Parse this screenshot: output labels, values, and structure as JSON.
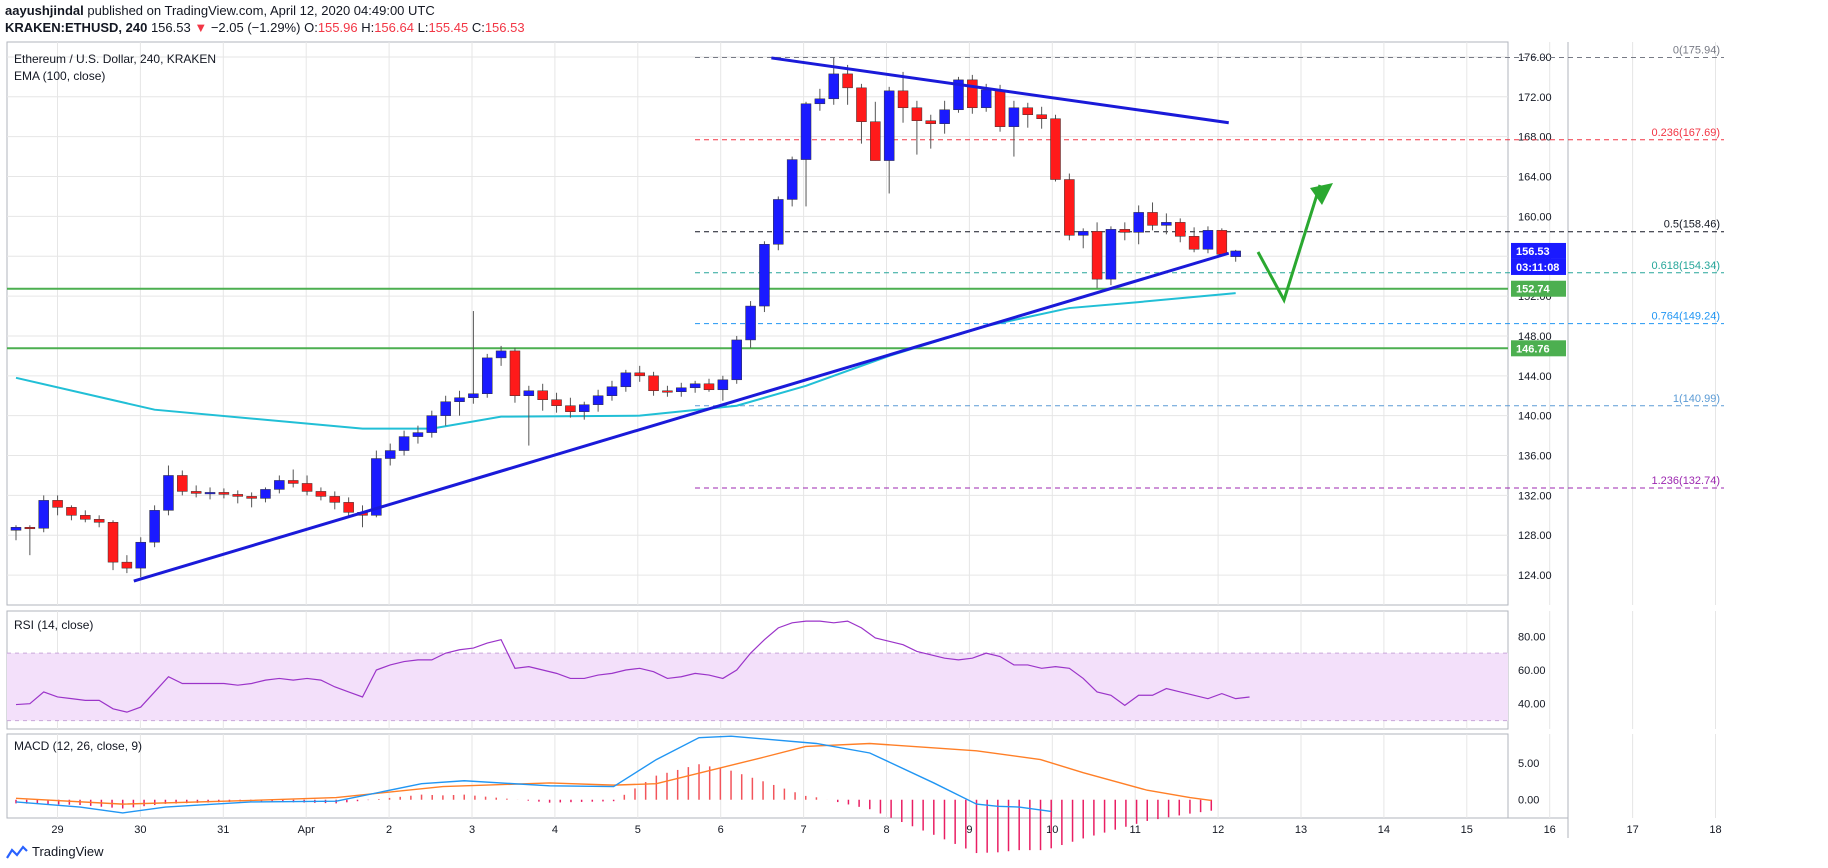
{
  "header": {
    "author": "aayushjindal",
    "published_text": "published on TradingView.com, April 12, 2020 04:49:00 UTC",
    "symbol": "KRAKEN:ETHUSD, 240",
    "last": "156.53",
    "change_arrow": "▼",
    "change": "−2.05 (−1.29%)",
    "open_label": "O:",
    "open": "155.96",
    "high_label": "H:",
    "high": "156.64",
    "low_label": "L:",
    "low": "155.45",
    "close_label": "C:",
    "close": "156.53"
  },
  "legend": {
    "title": "Ethereum / U.S. Dollar, 240, KRAKEN",
    "ema": "EMA (100, close)",
    "rsi": "RSI (14, close)",
    "macd": "MACD (12, 26, close, 9)"
  },
  "footer": {
    "brand": "TradingView"
  },
  "colors": {
    "up": "#1a1aff",
    "down": "#ff1a1a",
    "ema": "#21bfd6",
    "trend": "#1a1ad9",
    "support": "#4caf50",
    "arrow": "#2aa830",
    "rsi": "#9b34c9",
    "rsi_band": "#f3e0fa",
    "macd": "#2196f3",
    "signal": "#ff7f27",
    "hist_pos": "#f2545b",
    "hist_neg": "#e91e63"
  },
  "chart_data": {
    "type": "candlestick",
    "y_axis": {
      "range": [
        121,
        177.5
      ],
      "ticks": [
        "176.00",
        "172.00",
        "168.00",
        "164.00",
        "160.00",
        "156.00",
        "152.00",
        "148.00",
        "144.00",
        "140.00",
        "136.00",
        "132.00",
        "128.00",
        "124.00"
      ]
    },
    "x_axis": {
      "labels": [
        "29",
        "30",
        "31",
        "Apr",
        "2",
        "3",
        "4",
        "5",
        "6",
        "7",
        "8",
        "9",
        "10",
        "11",
        "12",
        "13",
        "14",
        "15",
        "16",
        "17",
        "18"
      ]
    },
    "candles": [
      [
        128.5,
        129.0,
        127.5,
        128.8
      ],
      [
        128.8,
        129.0,
        126.0,
        128.7
      ],
      [
        128.7,
        132.0,
        128.3,
        131.5
      ],
      [
        131.5,
        132.0,
        130.0,
        130.8
      ],
      [
        130.8,
        131.0,
        129.5,
        130.0
      ],
      [
        130.0,
        130.5,
        129.3,
        129.6
      ],
      [
        129.6,
        130.0,
        128.8,
        129.3
      ],
      [
        129.3,
        129.5,
        124.5,
        125.3
      ],
      [
        125.3,
        126.0,
        124.2,
        124.7
      ],
      [
        124.7,
        127.8,
        123.8,
        127.3
      ],
      [
        127.3,
        131.0,
        126.8,
        130.5
      ],
      [
        130.5,
        135.0,
        130.0,
        134.0
      ],
      [
        134.0,
        134.5,
        132.0,
        132.4
      ],
      [
        132.4,
        133.0,
        131.8,
        132.2
      ],
      [
        132.2,
        132.8,
        131.6,
        132.3
      ],
      [
        132.3,
        132.7,
        131.7,
        132.1
      ],
      [
        132.1,
        132.5,
        131.2,
        131.9
      ],
      [
        131.9,
        132.3,
        130.8,
        131.7
      ],
      [
        131.7,
        132.8,
        131.3,
        132.6
      ],
      [
        132.6,
        134.0,
        132.2,
        133.5
      ],
      [
        133.5,
        134.6,
        132.8,
        133.2
      ],
      [
        133.2,
        134.0,
        132.0,
        132.4
      ],
      [
        132.4,
        132.8,
        131.5,
        131.9
      ],
      [
        131.9,
        132.4,
        130.6,
        131.3
      ],
      [
        131.3,
        131.8,
        129.8,
        130.3
      ],
      [
        130.3,
        131.0,
        128.8,
        130.0
      ],
      [
        130.0,
        136.5,
        129.8,
        135.7
      ],
      [
        135.7,
        137.2,
        135.0,
        136.5
      ],
      [
        136.5,
        138.5,
        136.0,
        137.9
      ],
      [
        137.9,
        139.0,
        137.2,
        138.3
      ],
      [
        138.3,
        140.5,
        137.8,
        140.0
      ],
      [
        140.0,
        142.0,
        139.0,
        141.4
      ],
      [
        141.4,
        142.5,
        140.0,
        141.8
      ],
      [
        141.8,
        150.5,
        141.2,
        142.2
      ],
      [
        142.2,
        146.2,
        141.8,
        145.8
      ],
      [
        145.8,
        147.0,
        145.0,
        146.5
      ],
      [
        146.5,
        146.8,
        141.3,
        142.0
      ],
      [
        142.0,
        143.0,
        137.0,
        142.5
      ],
      [
        142.5,
        143.2,
        140.5,
        141.6
      ],
      [
        141.6,
        142.3,
        140.3,
        141.0
      ],
      [
        141.0,
        141.8,
        139.8,
        140.4
      ],
      [
        140.4,
        141.4,
        139.6,
        141.1
      ],
      [
        141.1,
        142.6,
        140.4,
        142.0
      ],
      [
        142.0,
        143.5,
        141.5,
        142.9
      ],
      [
        142.9,
        144.6,
        142.4,
        144.3
      ],
      [
        144.3,
        145.0,
        143.4,
        144.0
      ],
      [
        144.0,
        144.4,
        142.0,
        142.5
      ],
      [
        142.5,
        143.0,
        141.9,
        142.4
      ],
      [
        142.4,
        143.3,
        141.9,
        142.8
      ],
      [
        142.8,
        143.5,
        142.3,
        143.2
      ],
      [
        143.2,
        143.7,
        142.4,
        142.6
      ],
      [
        142.6,
        144.0,
        141.5,
        143.6
      ],
      [
        143.6,
        148.0,
        143.2,
        147.6
      ],
      [
        147.6,
        151.5,
        146.8,
        151.0
      ],
      [
        151.0,
        157.5,
        150.4,
        157.2
      ],
      [
        157.2,
        162.0,
        156.6,
        161.7
      ],
      [
        161.7,
        166.0,
        161.0,
        165.7
      ],
      [
        165.7,
        171.5,
        161.0,
        171.3
      ],
      [
        171.3,
        172.8,
        170.6,
        171.8
      ],
      [
        171.8,
        175.94,
        171.2,
        174.3
      ],
      [
        174.3,
        175.2,
        171.2,
        172.9
      ],
      [
        172.9,
        173.3,
        167.3,
        169.5
      ],
      [
        169.5,
        171.5,
        165.6,
        165.6
      ],
      [
        165.6,
        173.0,
        162.3,
        172.6
      ],
      [
        172.6,
        174.5,
        169.4,
        170.9
      ],
      [
        170.9,
        171.6,
        166.2,
        169.6
      ],
      [
        169.6,
        170.2,
        166.8,
        169.3
      ],
      [
        169.3,
        171.6,
        168.3,
        170.7
      ],
      [
        170.7,
        174.0,
        170.4,
        173.7
      ],
      [
        173.7,
        174.2,
        170.3,
        170.9
      ],
      [
        170.9,
        173.3,
        170.5,
        172.7
      ],
      [
        172.7,
        173.2,
        168.5,
        169.0
      ],
      [
        169.0,
        171.6,
        166.0,
        170.9
      ],
      [
        170.9,
        171.4,
        168.9,
        170.2
      ],
      [
        170.2,
        171.0,
        168.8,
        169.8
      ],
      [
        169.8,
        170.2,
        163.5,
        163.7
      ],
      [
        163.7,
        164.3,
        157.6,
        158.1
      ],
      [
        158.1,
        158.8,
        156.8,
        158.5
      ],
      [
        158.5,
        159.4,
        152.8,
        153.7
      ],
      [
        153.7,
        159.0,
        153.1,
        158.7
      ],
      [
        158.7,
        159.4,
        157.6,
        158.4
      ],
      [
        158.4,
        161.1,
        157.2,
        160.4
      ],
      [
        160.4,
        161.4,
        158.6,
        159.1
      ],
      [
        159.1,
        160.3,
        158.2,
        159.4
      ],
      [
        159.4,
        159.8,
        157.4,
        158.0
      ],
      [
        158.0,
        158.9,
        156.4,
        156.7
      ],
      [
        156.7,
        159.0,
        156.3,
        158.6
      ],
      [
        158.6,
        158.8,
        156.0,
        156.2
      ],
      [
        155.96,
        156.64,
        155.45,
        156.53
      ]
    ],
    "ema_100": [
      [
        0,
        143.8
      ],
      [
        10,
        140.6
      ],
      [
        25,
        138.7
      ],
      [
        30,
        138.7
      ],
      [
        35,
        139.9
      ],
      [
        45,
        140.0
      ],
      [
        52,
        141.0
      ],
      [
        57,
        143.0
      ],
      [
        63,
        146.0
      ],
      [
        70,
        149.0
      ],
      [
        76,
        150.8
      ],
      [
        81,
        151.4
      ],
      [
        88,
        152.3
      ]
    ],
    "support_levels": [
      {
        "value": "152.74"
      },
      {
        "value": "146.76"
      }
    ],
    "last_price_label": "156.53",
    "countdown": "03:11:08",
    "fibonacci": [
      {
        "label": "0(175.94)",
        "value": 175.94,
        "color": "#787b86"
      },
      {
        "label": "0.236(167.69)",
        "value": 167.69,
        "color": "#f23645"
      },
      {
        "label": "0.5(158.46)",
        "value": 158.46,
        "color": "#131722"
      },
      {
        "label": "0.618(154.34)",
        "value": 154.34,
        "color": "#26a69a"
      },
      {
        "label": "0.764(149.24)",
        "value": 149.24,
        "color": "#2196f3"
      },
      {
        "label": "1(140.99)",
        "value": 140.99,
        "color": "#5b9bd5"
      },
      {
        "label": "1.236(132.74)",
        "value": 132.74,
        "color": "#9c27b0"
      }
    ],
    "trendlines": [
      {
        "from": [
          8.5,
          123.4
        ],
        "to": [
          87.5,
          156.3
        ]
      },
      {
        "from": [
          54.5,
          175.9
        ],
        "to": [
          87.5,
          169.4
        ]
      }
    ],
    "rsi": {
      "ticks": [
        "80.00",
        "60.00",
        "40.00"
      ],
      "range": [
        25,
        95
      ],
      "band": [
        30,
        70
      ],
      "values": [
        39.5,
        40,
        47,
        44,
        43,
        42,
        42,
        37,
        35,
        38,
        47,
        56,
        52,
        52,
        52,
        52,
        51,
        52,
        54,
        55,
        54,
        55,
        54,
        50,
        47,
        44,
        60,
        63,
        65,
        66,
        66,
        70,
        72,
        73,
        76,
        78,
        61,
        62,
        60,
        58,
        55,
        55,
        57,
        58,
        60,
        61,
        59,
        55,
        56,
        58,
        57,
        55,
        60,
        70,
        78,
        85,
        88,
        89,
        89,
        88,
        89,
        85,
        79,
        77,
        75,
        71,
        69,
        67,
        66,
        67,
        70,
        68,
        63,
        63,
        61,
        62,
        61,
        55,
        47,
        45,
        39,
        45,
        45,
        49,
        47,
        45,
        43,
        46,
        43,
        44
      ]
    },
    "macd": {
      "ticks": [
        "5.00",
        "0.00"
      ],
      "range": [
        -2.5,
        9
      ],
      "macd": [
        [
          0,
          -0.3
        ],
        [
          6,
          -1.0
        ],
        [
          10,
          -1.8
        ],
        [
          14,
          -1.0
        ],
        [
          22,
          -0.3
        ],
        [
          30,
          -0.2
        ],
        [
          38,
          2.2
        ],
        [
          42,
          2.6
        ],
        [
          50,
          1.9
        ],
        [
          56,
          1.8
        ],
        [
          60,
          5.5
        ],
        [
          64,
          8.5
        ],
        [
          67,
          8.7
        ],
        [
          75,
          7.7
        ],
        [
          80,
          6.4
        ],
        [
          86,
          2.3
        ],
        [
          90,
          -0.6
        ],
        [
          92,
          -0.9
        ],
        [
          94,
          -1.0
        ],
        [
          97,
          -1.6
        ]
      ],
      "signal": [
        [
          0,
          0.2
        ],
        [
          10,
          -0.6
        ],
        [
          22,
          -0.1
        ],
        [
          30,
          0.3
        ],
        [
          40,
          1.8
        ],
        [
          50,
          2.3
        ],
        [
          56,
          2.0
        ],
        [
          60,
          2.2
        ],
        [
          70,
          5.8
        ],
        [
          74,
          7.3
        ],
        [
          80,
          7.7
        ],
        [
          90,
          6.7
        ],
        [
          96,
          5.5
        ],
        [
          100,
          3.7
        ],
        [
          106,
          1.3
        ],
        [
          110,
          0.3
        ],
        [
          112,
          -0.1
        ]
      ],
      "histogram_from_index": 46,
      "histogram_scale": 1
    }
  }
}
